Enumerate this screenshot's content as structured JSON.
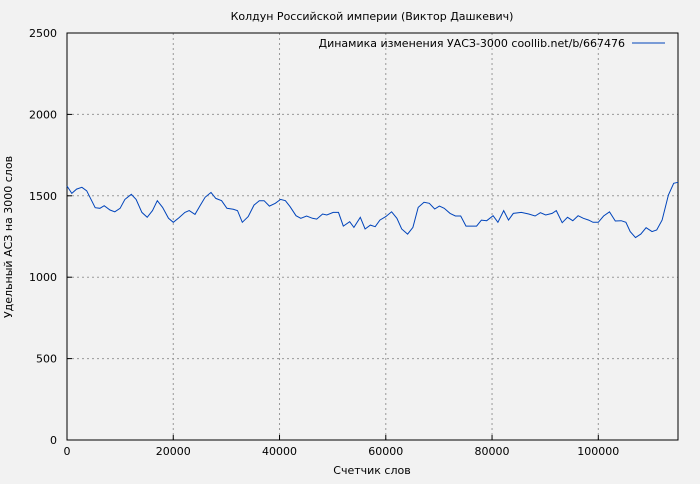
{
  "chart_data": {
    "type": "line",
    "title": "Колдун Российской империи (Виктор Дашкевич)",
    "xlabel": "Счетчик слов",
    "ylabel": "Удельный АСЗ на 3000 слов",
    "xlim": [
      0,
      115000
    ],
    "ylim": [
      0,
      2500
    ],
    "xticks": [
      0,
      20000,
      40000,
      60000,
      80000,
      100000
    ],
    "yticks": [
      0,
      500,
      1000,
      1500,
      2000,
      2500
    ],
    "grid": true,
    "legend_position": "top-right",
    "line_color": "#0044bb",
    "series": [
      {
        "name": "Динамика изменения УАСЗ-3000 coollib.net/b/667476",
        "x": [
          0,
          900,
          1800,
          2800,
          3700,
          5300,
          6200,
          7000,
          8100,
          9000,
          10000,
          10900,
          12100,
          13000,
          14100,
          15100,
          16100,
          17000,
          18000,
          19100,
          20000,
          21100,
          22200,
          23000,
          24100,
          25000,
          26000,
          27100,
          28000,
          29100,
          30100,
          31300,
          32100,
          33000,
          34100,
          35200,
          36200,
          37100,
          38100,
          39200,
          40200,
          41100,
          42000,
          43100,
          44000,
          45100,
          46200,
          47000,
          48100,
          48900,
          50100,
          51100,
          52000,
          53200,
          54000,
          55200,
          56100,
          57100,
          58000,
          58900,
          60000,
          61100,
          62100,
          63000,
          64100,
          65100,
          66100,
          67200,
          68200,
          69200,
          70100,
          71000,
          72100,
          73100,
          74100,
          75100,
          77100,
          78000,
          79000,
          80200,
          81100,
          82200,
          83100,
          84000,
          85500,
          86900,
          88100,
          89100,
          90100,
          91300,
          92100,
          93200,
          94200,
          95200,
          96200,
          97200,
          98200,
          99000,
          100000,
          101000,
          102100,
          103200,
          104300,
          105200,
          106000,
          107000,
          108000,
          109000,
          110100,
          111000,
          112000,
          113200,
          114200,
          115000
        ],
        "y": [
          1560,
          1515,
          1541,
          1552,
          1531,
          1427,
          1423,
          1439,
          1413,
          1402,
          1423,
          1478,
          1509,
          1478,
          1398,
          1368,
          1409,
          1470,
          1429,
          1362,
          1337,
          1366,
          1398,
          1409,
          1386,
          1437,
          1491,
          1521,
          1484,
          1470,
          1423,
          1417,
          1409,
          1337,
          1372,
          1443,
          1470,
          1470,
          1437,
          1454,
          1478,
          1470,
          1433,
          1378,
          1362,
          1376,
          1362,
          1357,
          1388,
          1382,
          1398,
          1398,
          1314,
          1341,
          1306,
          1368,
          1296,
          1320,
          1310,
          1351,
          1372,
          1402,
          1362,
          1296,
          1265,
          1306,
          1429,
          1460,
          1454,
          1419,
          1437,
          1423,
          1392,
          1376,
          1376,
          1314,
          1314,
          1351,
          1347,
          1378,
          1337,
          1409,
          1351,
          1392,
          1398,
          1388,
          1376,
          1396,
          1382,
          1392,
          1409,
          1335,
          1368,
          1347,
          1378,
          1362,
          1351,
          1337,
          1337,
          1376,
          1402,
          1345,
          1347,
          1337,
          1280,
          1243,
          1265,
          1304,
          1280,
          1290,
          1351,
          1505,
          1577,
          1583
        ]
      }
    ]
  }
}
